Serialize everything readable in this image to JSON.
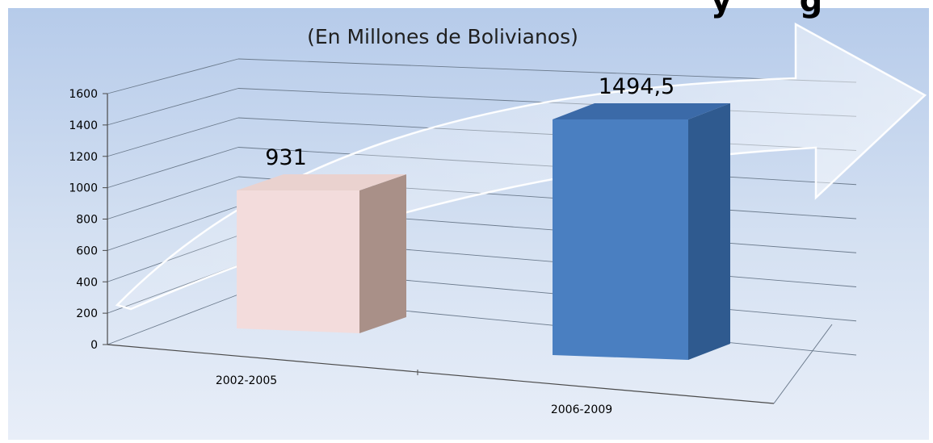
{
  "chart_data": {
    "type": "bar",
    "title_partial": "y      g",
    "subtitle": "(En Millones de Bolivianos)",
    "categories": [
      "2002-2005",
      "2006-2009"
    ],
    "values": [
      931,
      1494.5
    ],
    "value_labels": [
      "931",
      "1494,5"
    ],
    "ylim": [
      0,
      1600
    ],
    "yticks": [
      0,
      200,
      400,
      600,
      800,
      1000,
      1200,
      1400,
      1600
    ],
    "ytick_labels": [
      "0",
      "200",
      "400",
      "600",
      "800",
      "1000",
      "1200",
      "1400",
      "1600"
    ],
    "grid": true,
    "three_d": true,
    "decoration": "curved upward arrow behind bars",
    "colors": {
      "bar_1_front": "#f3dcdc",
      "bar_1_side": "#a99088",
      "bar_1_top": "#ead2cf",
      "bar_2_front": "#4a7fc1",
      "bar_2_side": "#2f5a8f",
      "bar_2_top": "#3b6aa8",
      "background_top": "#bcd0ec",
      "background_bottom": "#e6edf7"
    }
  }
}
